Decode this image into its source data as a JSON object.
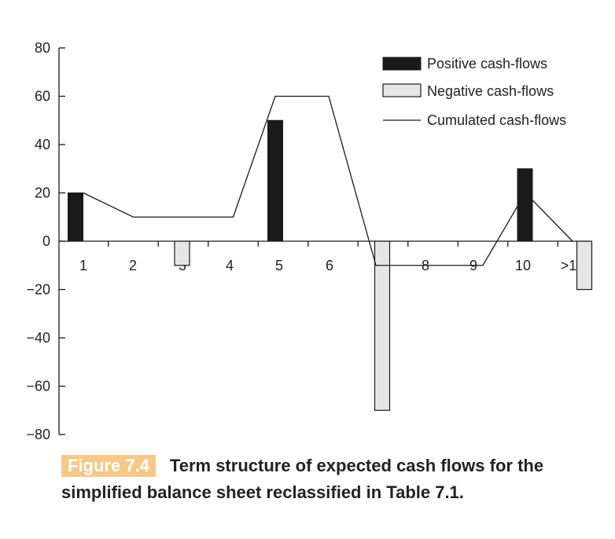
{
  "chart_data": {
    "type": "bar",
    "categories": [
      "1",
      "2",
      "3",
      "4",
      "5",
      "6",
      "7",
      "8",
      "9",
      "10",
      ">10"
    ],
    "series": [
      {
        "name": "Positive cash-flows",
        "kind": "bar",
        "values": [
          20,
          0,
          0,
          0,
          50,
          0,
          0,
          0,
          0,
          30,
          0
        ]
      },
      {
        "name": "Negative cash-flows",
        "kind": "bar",
        "values": [
          0,
          -10,
          0,
          0,
          0,
          0,
          -70,
          0,
          0,
          0,
          -20
        ]
      },
      {
        "name": "Cumulated cash-flows",
        "kind": "line",
        "values": [
          20,
          10,
          10,
          10,
          60,
          60,
          -10,
          -10,
          -10,
          20,
          0
        ]
      }
    ],
    "yticks": [
      80,
      60,
      40,
      20,
      0,
      -20,
      -40,
      -60,
      -80
    ],
    "ylim": [
      -80,
      80
    ],
    "colors": {
      "positive": "#1a1a1a",
      "negative": "#e6e6e6",
      "line": "#1a1a1a"
    }
  },
  "caption": {
    "figure_label": "Figure 7.4",
    "text": "Term structure of expected cash flows for the simplified balance sheet reclassified in Table 7.1."
  }
}
